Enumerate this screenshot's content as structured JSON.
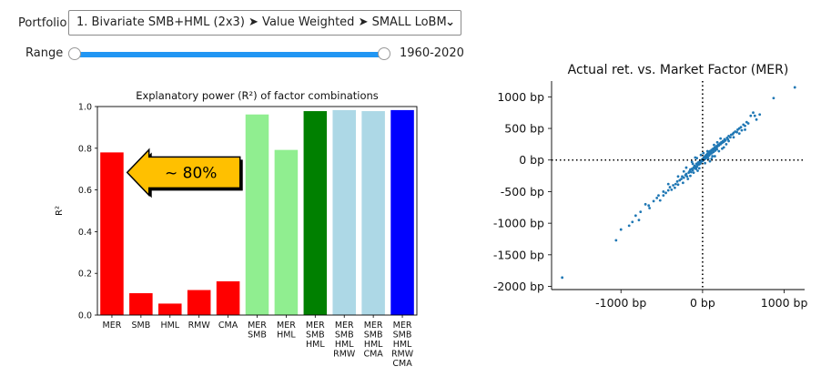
{
  "controls": {
    "portfolio_label": "Portfolio",
    "portfolio_value": "1. Bivariate SMB+HML (2x3) ➤ Value Weighted ➤ SMALL LoBM",
    "range_label": "Range",
    "range_value": "1960-2020"
  },
  "chart_data": [
    {
      "type": "bar",
      "title": "Explanatory power (R²) of factor combinations",
      "ylabel": "R²",
      "ylim": [
        0,
        1
      ],
      "yticks": [
        "0.0",
        "0.2",
        "0.4",
        "0.6",
        "0.8",
        "1.0"
      ],
      "categories": [
        [
          "MER"
        ],
        [
          "SMB"
        ],
        [
          "HML"
        ],
        [
          "RMW"
        ],
        [
          "CMA"
        ],
        [
          "MER",
          "SMB"
        ],
        [
          "MER",
          "HML"
        ],
        [
          "MER",
          "SMB",
          "HML"
        ],
        [
          "MER",
          "SMB",
          "HML",
          "RMW"
        ],
        [
          "MER",
          "SMB",
          "HML",
          "CMA"
        ],
        [
          "MER",
          "SMB",
          "HML",
          "RMW",
          "CMA"
        ]
      ],
      "values": [
        0.78,
        0.105,
        0.055,
        0.12,
        0.162,
        0.962,
        0.792,
        0.978,
        0.983,
        0.978,
        0.983
      ],
      "colors": [
        "#ff0000",
        "#ff0000",
        "#ff0000",
        "#ff0000",
        "#ff0000",
        "#90ee90",
        "#90ee90",
        "#008000",
        "#add8e6",
        "#add8e6",
        "#0000ff"
      ],
      "annotation": {
        "text": "~ 80%",
        "target_value": 0.78,
        "arrow_color": "#ffc000"
      }
    },
    {
      "type": "scatter",
      "title": "Actual ret. vs. Market Factor (MER)",
      "xlim": [
        -1850,
        1250
      ],
      "ylim": [
        -2050,
        1250
      ],
      "xticks": [
        {
          "v": -1000,
          "label": "-1000 bp"
        },
        {
          "v": 0,
          "label": "0 bp"
        },
        {
          "v": 1000,
          "label": "1000 bp"
        }
      ],
      "yticks": [
        {
          "v": 1000,
          "label": "1000 bp"
        },
        {
          "v": 500,
          "label": "500 bp"
        },
        {
          "v": 0,
          "label": "0 bp"
        },
        {
          "v": -500,
          "label": "-500 bp"
        },
        {
          "v": -1000,
          "label": "-1000 bp"
        },
        {
          "v": -1500,
          "label": "-1500 bp"
        },
        {
          "v": -2000,
          "label": "-2000 bp"
        }
      ],
      "point_color": "#1f77b4",
      "points": [
        [
          -1720,
          -1860
        ],
        [
          -1060,
          -1270
        ],
        [
          1130,
          1150
        ],
        [
          870,
          980
        ],
        [
          620,
          750
        ],
        [
          590,
          700
        ],
        [
          -780,
          -950
        ],
        [
          -860,
          -980
        ],
        [
          -820,
          -880
        ],
        [
          -650,
          -760
        ],
        [
          -700,
          -700
        ],
        [
          -600,
          -650
        ],
        [
          -560,
          -600
        ],
        [
          -520,
          -640
        ],
        [
          -480,
          -560
        ],
        [
          -450,
          -520
        ],
        [
          -420,
          -480
        ],
        [
          -400,
          -430
        ],
        [
          -380,
          -470
        ],
        [
          -360,
          -400
        ],
        [
          -330,
          -380
        ],
        [
          -310,
          -340
        ],
        [
          -300,
          -390
        ],
        [
          -280,
          -320
        ],
        [
          -260,
          -300
        ],
        [
          -250,
          -260
        ],
        [
          -230,
          -280
        ],
        [
          -210,
          -240
        ],
        [
          -200,
          -220
        ],
        [
          -190,
          -260
        ],
        [
          -170,
          -200
        ],
        [
          -160,
          -180
        ],
        [
          -150,
          -150
        ],
        [
          -140,
          -190
        ],
        [
          -130,
          -140
        ],
        [
          -120,
          -160
        ],
        [
          -110,
          -120
        ],
        [
          -100,
          -90
        ],
        [
          -95,
          -130
        ],
        [
          -85,
          -100
        ],
        [
          -75,
          -60
        ],
        [
          -70,
          -110
        ],
        [
          -60,
          -80
        ],
        [
          -55,
          -40
        ],
        [
          -45,
          -70
        ],
        [
          -40,
          -30
        ],
        [
          -30,
          -60
        ],
        [
          -25,
          -10
        ],
        [
          -20,
          -40
        ],
        [
          -10,
          -20
        ],
        [
          -5,
          10
        ],
        [
          0,
          -15
        ],
        [
          5,
          20
        ],
        [
          10,
          0
        ],
        [
          15,
          40
        ],
        [
          20,
          10
        ],
        [
          25,
          30
        ],
        [
          30,
          60
        ],
        [
          35,
          20
        ],
        [
          40,
          50
        ],
        [
          45,
          80
        ],
        [
          50,
          40
        ],
        [
          55,
          70
        ],
        [
          60,
          100
        ],
        [
          65,
          55
        ],
        [
          70,
          90
        ],
        [
          75,
          120
        ],
        [
          80,
          70
        ],
        [
          85,
          110
        ],
        [
          90,
          140
        ],
        [
          95,
          95
        ],
        [
          100,
          130
        ],
        [
          110,
          160
        ],
        [
          115,
          110
        ],
        [
          120,
          150
        ],
        [
          130,
          180
        ],
        [
          135,
          130
        ],
        [
          140,
          170
        ],
        [
          150,
          200
        ],
        [
          155,
          150
        ],
        [
          160,
          190
        ],
        [
          170,
          220
        ],
        [
          175,
          170
        ],
        [
          180,
          210
        ],
        [
          190,
          240
        ],
        [
          200,
          230
        ],
        [
          210,
          260
        ],
        [
          220,
          250
        ],
        [
          230,
          280
        ],
        [
          240,
          270
        ],
        [
          250,
          300
        ],
        [
          260,
          290
        ],
        [
          270,
          330
        ],
        [
          280,
          310
        ],
        [
          300,
          350
        ],
        [
          310,
          330
        ],
        [
          320,
          380
        ],
        [
          340,
          360
        ],
        [
          350,
          400
        ],
        [
          370,
          410
        ],
        [
          380,
          430
        ],
        [
          400,
          450
        ],
        [
          420,
          440
        ],
        [
          430,
          480
        ],
        [
          450,
          500
        ],
        [
          470,
          520
        ],
        [
          480,
          470
        ],
        [
          500,
          560
        ],
        [
          520,
          540
        ],
        [
          540,
          600
        ],
        [
          560,
          580
        ],
        [
          -120,
          -60
        ],
        [
          -80,
          -140
        ],
        [
          60,
          140
        ],
        [
          120,
          60
        ],
        [
          200,
          140
        ],
        [
          -200,
          -120
        ],
        [
          180,
          280
        ],
        [
          -150,
          -250
        ],
        [
          90,
          -20
        ],
        [
          -90,
          40
        ],
        [
          150,
          60
        ],
        [
          -60,
          -170
        ],
        [
          220,
          340
        ],
        [
          -240,
          -360
        ],
        [
          260,
          200
        ],
        [
          -300,
          -260
        ],
        [
          320,
          300
        ],
        [
          -340,
          -440
        ],
        [
          380,
          360
        ],
        [
          -420,
          -380
        ],
        [
          450,
          420
        ],
        [
          -480,
          -500
        ],
        [
          -20,
          80
        ],
        [
          30,
          -50
        ],
        [
          -130,
          -30
        ],
        [
          140,
          240
        ],
        [
          -180,
          -300
        ],
        [
          240,
          180
        ],
        [
          10,
          110
        ],
        [
          -40,
          -130
        ],
        [
          70,
          20
        ],
        [
          -110,
          -200
        ],
        [
          -660,
          -720
        ],
        [
          -540,
          -560
        ],
        [
          660,
          640
        ],
        [
          700,
          720
        ],
        [
          -900,
          -1040
        ],
        [
          -1000,
          -1100
        ],
        [
          520,
          480
        ],
        [
          -760,
          -820
        ],
        [
          640,
          700
        ],
        [
          -70,
          30
        ],
        [
          110,
          20
        ],
        [
          -230,
          -180
        ],
        [
          290,
          250
        ]
      ]
    }
  ]
}
